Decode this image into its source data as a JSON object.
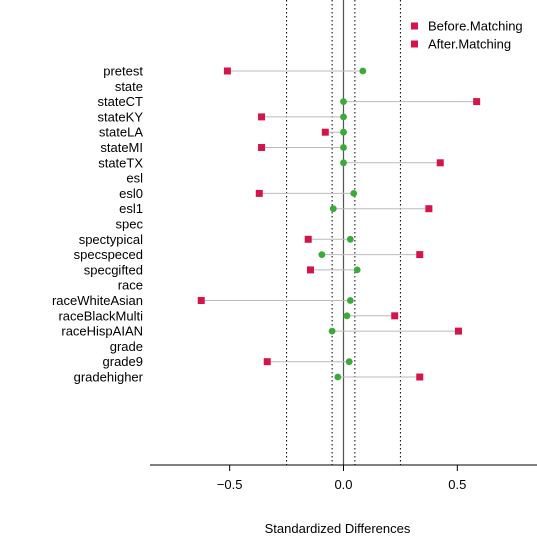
{
  "chart_data": {
    "type": "scatter",
    "xlabel": "Standardized Differences",
    "xlim": [
      -0.85,
      0.85
    ],
    "xticks": [
      {
        "value": -0.5,
        "label": "−0.5"
      },
      {
        "value": 0.0,
        "label": "0.0"
      },
      {
        "value": 0.5,
        "label": "0.5"
      }
    ],
    "reference_lines": {
      "solid": [
        0
      ],
      "dotted": [
        -0.25,
        -0.05,
        0.05,
        0.25
      ]
    },
    "legend": {
      "placement": "top-right",
      "entries": [
        {
          "label": "Before.Matching",
          "color": "#D4144A",
          "marker": "square"
        },
        {
          "label": "After.Matching",
          "color": "#D4144A",
          "marker": "square"
        }
      ]
    },
    "colors": {
      "before": "#D4144A",
      "after": "#3AAA3A",
      "segment": "#BBBBBB"
    },
    "rows": [
      {
        "label": "pretest",
        "kind": "variable",
        "before": -0.51,
        "after": 0.085
      },
      {
        "label": "state",
        "kind": "group"
      },
      {
        "label": "stateCT",
        "kind": "variable",
        "before": 0.585,
        "after": 0.0
      },
      {
        "label": "stateKY",
        "kind": "variable",
        "before": -0.36,
        "after": 0.0
      },
      {
        "label": "stateLA",
        "kind": "variable",
        "before": -0.08,
        "after": 0.0
      },
      {
        "label": "stateMI",
        "kind": "variable",
        "before": -0.36,
        "after": 0.0
      },
      {
        "label": "stateTX",
        "kind": "variable",
        "before": 0.425,
        "after": 0.0
      },
      {
        "label": "esl",
        "kind": "group"
      },
      {
        "label": "esl0",
        "kind": "variable",
        "before": -0.37,
        "after": 0.045
      },
      {
        "label": "esl1",
        "kind": "variable",
        "before": 0.375,
        "after": -0.045
      },
      {
        "label": "spec",
        "kind": "group"
      },
      {
        "label": "spectypical",
        "kind": "variable",
        "before": -0.155,
        "after": 0.03
      },
      {
        "label": "specspeced",
        "kind": "variable",
        "before": 0.335,
        "after": -0.095
      },
      {
        "label": "specgifted",
        "kind": "variable",
        "before": -0.145,
        "after": 0.06
      },
      {
        "label": "race",
        "kind": "group"
      },
      {
        "label": "raceWhiteAsian",
        "kind": "variable",
        "before": -0.625,
        "after": 0.03
      },
      {
        "label": "raceBlackMulti",
        "kind": "variable",
        "before": 0.225,
        "after": 0.015
      },
      {
        "label": "raceHispAIAN",
        "kind": "variable",
        "before": 0.505,
        "after": -0.05
      },
      {
        "label": "grade",
        "kind": "group"
      },
      {
        "label": "grade9",
        "kind": "variable",
        "before": -0.335,
        "after": 0.025
      },
      {
        "label": "gradehigher",
        "kind": "variable",
        "before": 0.335,
        "after": -0.025
      }
    ]
  }
}
